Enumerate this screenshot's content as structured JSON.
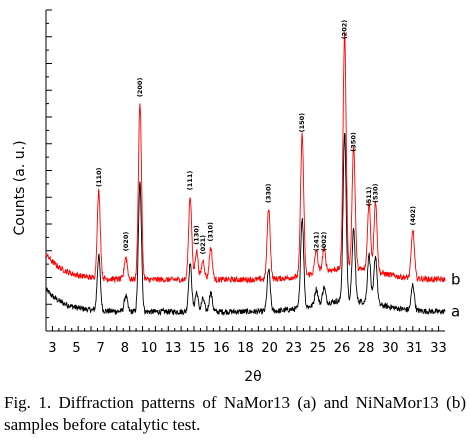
{
  "chart_data": {
    "type": "line",
    "xlabel": "2θ",
    "ylabel": "Counts (a. u.)",
    "xlim": [
      2.5,
      33.5
    ],
    "x_ticks": [
      3,
      5,
      7,
      8,
      10,
      13,
      15,
      16,
      18,
      20,
      23,
      25,
      26,
      28,
      30,
      31,
      33
    ],
    "grid": false,
    "series": [
      {
        "name": "a",
        "color": "#000000",
        "baseline": 0.06
      },
      {
        "name": "b",
        "color": "#ff0000",
        "baseline": 0.16
      }
    ],
    "peak_labels": [
      {
        "label": "(110)",
        "x": 6.6
      },
      {
        "label": "(020)",
        "x": 8.7
      },
      {
        "label": "(200)",
        "x": 9.8
      },
      {
        "label": "(111)",
        "x": 13.7
      },
      {
        "label": "(130)",
        "x": 14.2
      },
      {
        "label": "(021)",
        "x": 14.7
      },
      {
        "label": "(310)",
        "x": 15.3
      },
      {
        "label": "(330)",
        "x": 19.8
      },
      {
        "label": "(150)",
        "x": 22.4
      },
      {
        "label": "(241)",
        "x": 23.5
      },
      {
        "label": "(002)",
        "x": 24.1
      },
      {
        "label": "(202)",
        "x": 25.7
      },
      {
        "label": "(350)",
        "x": 26.4
      },
      {
        "label": "(511)",
        "x": 27.6
      },
      {
        "label": "(530)",
        "x": 28.1
      },
      {
        "label": "(402)",
        "x": 31.0
      }
    ],
    "peaks": [
      {
        "x": 6.6,
        "a": 0.17,
        "b": 0.27
      },
      {
        "x": 8.7,
        "a": 0.05,
        "b": 0.07
      },
      {
        "x": 9.8,
        "a": 0.4,
        "b": 0.55
      },
      {
        "x": 13.7,
        "a": 0.15,
        "b": 0.26
      },
      {
        "x": 14.2,
        "a": 0.06,
        "b": 0.09
      },
      {
        "x": 14.7,
        "a": 0.04,
        "b": 0.06
      },
      {
        "x": 15.3,
        "a": 0.06,
        "b": 0.1
      },
      {
        "x": 19.8,
        "a": 0.13,
        "b": 0.22
      },
      {
        "x": 22.4,
        "a": 0.28,
        "b": 0.44
      },
      {
        "x": 23.5,
        "a": 0.05,
        "b": 0.07
      },
      {
        "x": 24.1,
        "a": 0.05,
        "b": 0.07
      },
      {
        "x": 25.7,
        "a": 0.52,
        "b": 0.73
      },
      {
        "x": 26.4,
        "a": 0.22,
        "b": 0.38
      },
      {
        "x": 27.6,
        "a": 0.15,
        "b": 0.21
      },
      {
        "x": 28.1,
        "a": 0.15,
        "b": 0.22
      },
      {
        "x": 31.0,
        "a": 0.08,
        "b": 0.15
      }
    ]
  },
  "caption": "Fig. 1. Diffraction patterns of NaMor13 (a) and NiNaMor13 (b) samples before catalytic test."
}
